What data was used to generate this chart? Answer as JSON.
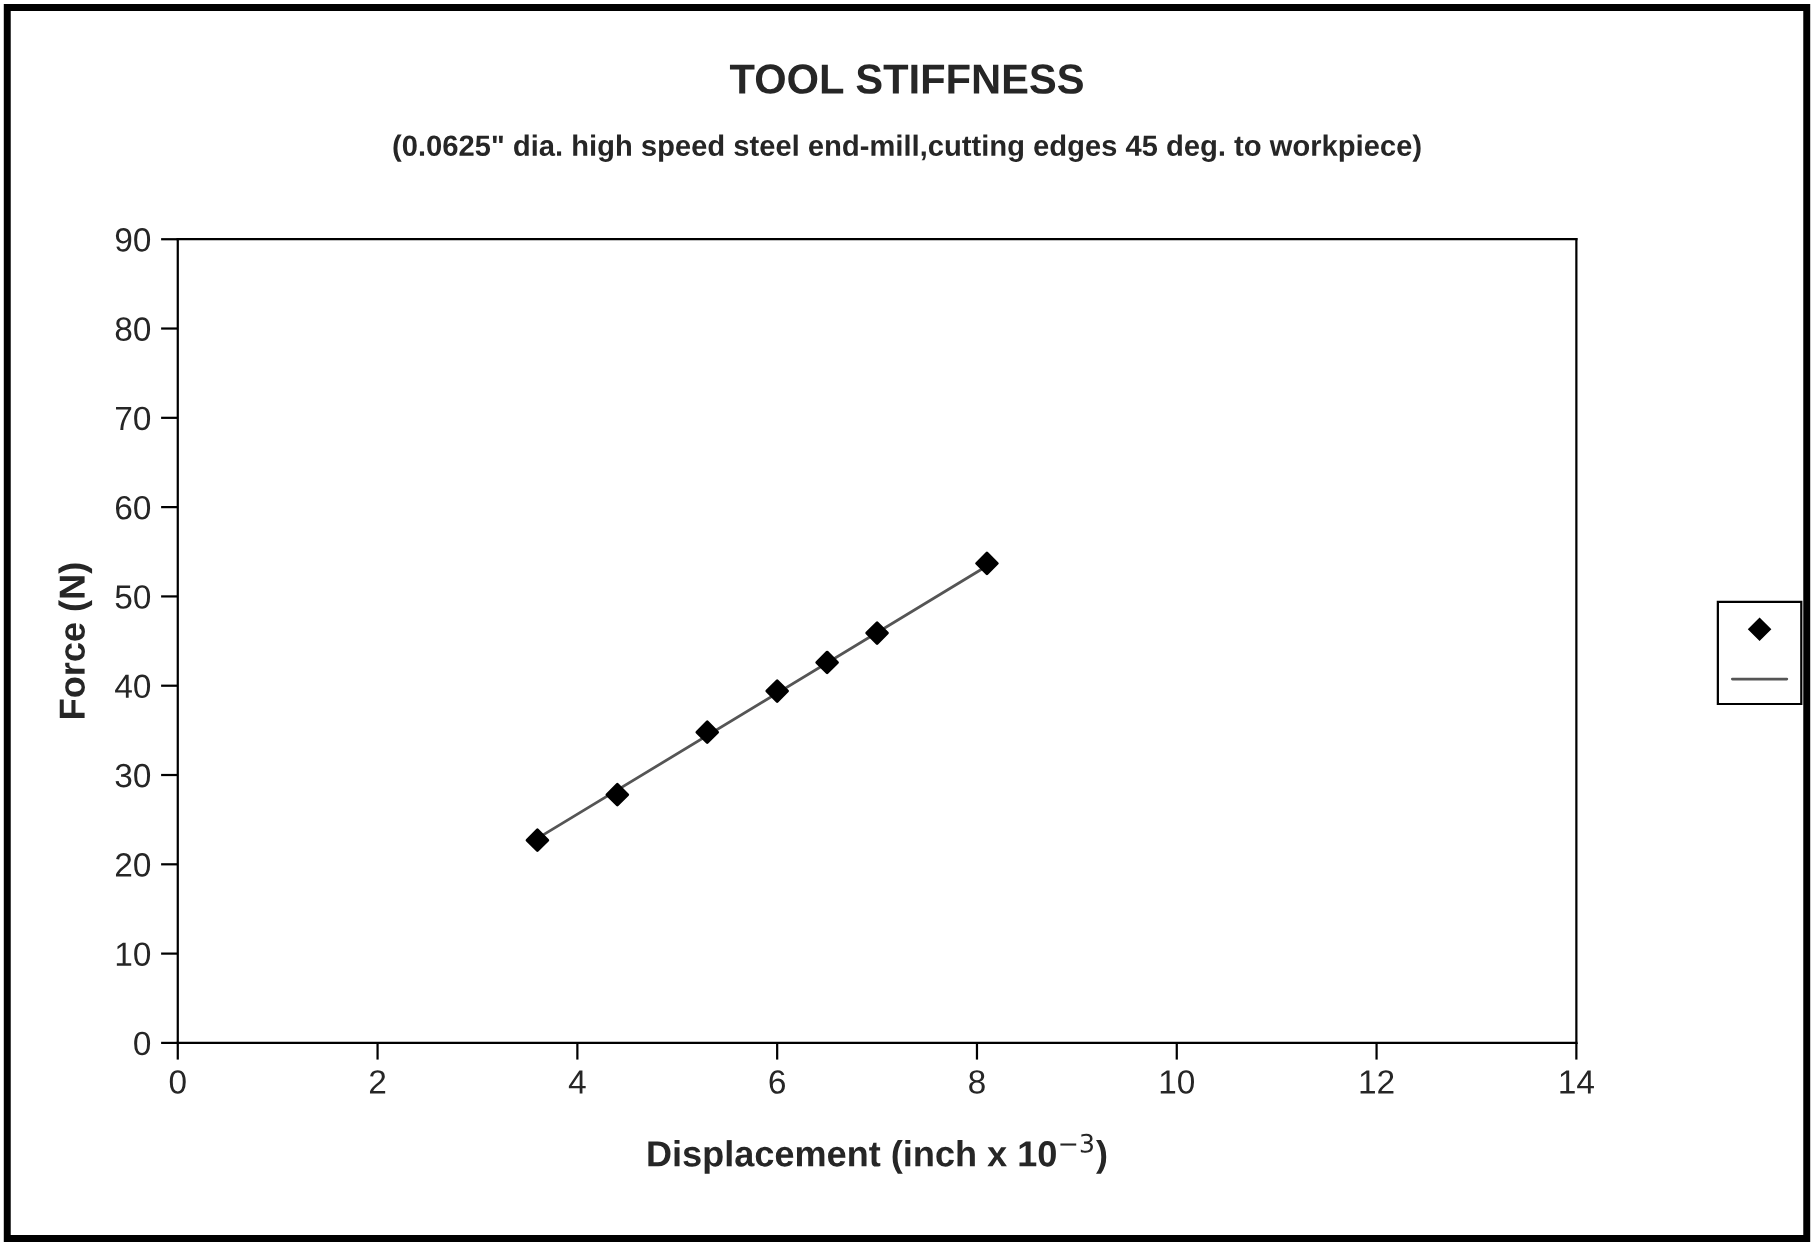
{
  "chart_data": {
    "type": "scatter",
    "title": "TOOL STIFFNESS",
    "subtitle": "(0.0625\" dia. high speed steel end-mill,cutting edges 45 deg. to workpiece)",
    "xlabel": "Displacement (inch x 10$^{−3}$)",
    "ylabel": "Force (N)",
    "xlim": [
      0,
      14
    ],
    "xticks": [
      0,
      2,
      4,
      6,
      8,
      10,
      12,
      14
    ],
    "ylim": [
      0,
      90
    ],
    "yticks": [
      0,
      10,
      20,
      30,
      40,
      50,
      60,
      70,
      80,
      90
    ],
    "grid": false,
    "series": [
      {
        "color": "#000000",
        "marker": "diamond",
        "x": [
          3.6,
          4.4,
          5.3,
          6.0,
          6.5,
          7.0,
          8.1
        ],
        "values": [
          22.7,
          27.8,
          34.8,
          39.4,
          42.6,
          45.9,
          53.7
        ]
      },
      {
        "type": "line",
        "color": "#555555",
        "marker": "none",
        "line_style": "solid",
        "x": [
          3.6,
          8.1
        ],
        "values": [
          22.9,
          53.4
        ]
      }
    ]
  }
}
